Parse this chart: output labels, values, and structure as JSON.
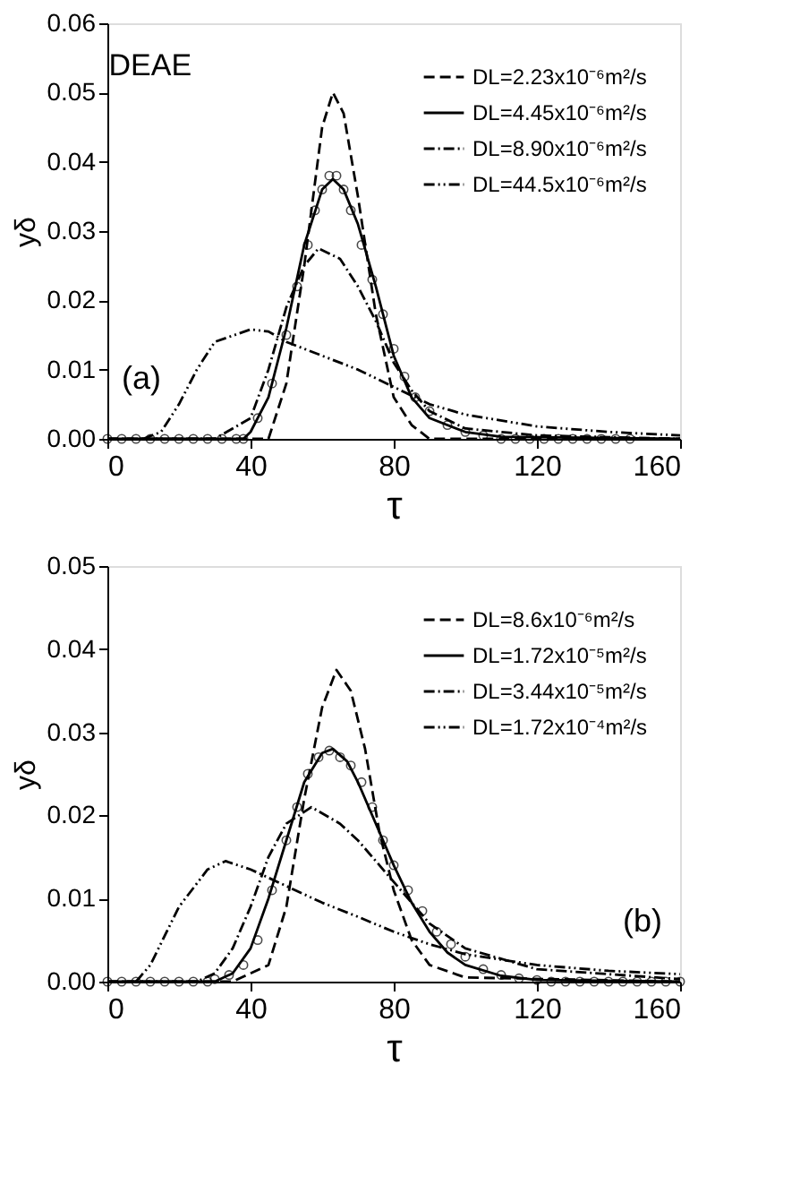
{
  "chart_data": [
    {
      "type": "line",
      "title": "DEAE",
      "xlabel": "τ",
      "ylabel": "yδ",
      "xlim": [
        0,
        160
      ],
      "xticks": [
        0,
        40,
        80,
        120,
        160
      ],
      "ylim": [
        0,
        0.06
      ],
      "yticks": [
        {
          "value": 0,
          "label": "0.00"
        },
        {
          "value": 0.01,
          "label": "0.01"
        },
        {
          "value": 0.02,
          "label": "0.02"
        },
        {
          "value": 0.03,
          "label": "0.03"
        },
        {
          "value": 0.04,
          "label": "0.04"
        },
        {
          "value": 0.05,
          "label": "0.05"
        },
        {
          "value": 0.06,
          "label": "0.06"
        }
      ],
      "grid": false,
      "legend": "top right",
      "annotations": [
        "(a)"
      ],
      "series": [
        {
          "name": "DL=2.23x10⁻⁶m²/s",
          "color": "#000000",
          "line_style": "dashed",
          "x": [
            0,
            45,
            50,
            55,
            60,
            63,
            66,
            70,
            75,
            80,
            85,
            90,
            160
          ],
          "values": [
            0,
            0,
            0.008,
            0.025,
            0.045,
            0.05,
            0.047,
            0.035,
            0.018,
            0.006,
            0.002,
            0,
            0
          ]
        },
        {
          "name": "DL=4.45x10⁻⁶m²/s",
          "color": "#000000",
          "line_style": "solid",
          "x": [
            0,
            38,
            40,
            45,
            50,
            55,
            60,
            63,
            66,
            70,
            75,
            80,
            85,
            90,
            100,
            110,
            160
          ],
          "values": [
            0,
            0,
            0.001,
            0.006,
            0.016,
            0.028,
            0.036,
            0.0375,
            0.036,
            0.031,
            0.022,
            0.012,
            0.006,
            0.003,
            0.001,
            0.0003,
            0
          ]
        },
        {
          "name": "DL=8.90x10⁻⁶m²/s",
          "color": "#000000",
          "line_style": "dashdot",
          "x": [
            0,
            30,
            40,
            45,
            50,
            55,
            59,
            65,
            70,
            75,
            80,
            85,
            90,
            100,
            120,
            160
          ],
          "values": [
            0,
            0,
            0.003,
            0.01,
            0.019,
            0.025,
            0.0275,
            0.026,
            0.022,
            0.017,
            0.011,
            0.007,
            0.004,
            0.0015,
            0.0005,
            0
          ]
        },
        {
          "name": "DL=44.5x10⁻⁶m²/s",
          "color": "#000000",
          "line_style": "dashdotdot",
          "x": [
            10,
            15,
            20,
            25,
            30,
            40,
            45,
            50,
            60,
            70,
            80,
            90,
            100,
            120,
            140,
            160
          ],
          "values": [
            0,
            0.001,
            0.005,
            0.01,
            0.014,
            0.0158,
            0.0155,
            0.014,
            0.012,
            0.01,
            0.0075,
            0.005,
            0.0035,
            0.0018,
            0.001,
            0.0005
          ]
        },
        {
          "type": "scatter",
          "marker": "circle",
          "color": "#000000",
          "x": [
            0,
            4,
            8,
            12,
            16,
            20,
            24,
            28,
            32,
            36,
            38,
            42,
            46,
            50,
            53,
            56,
            58,
            60,
            62,
            64,
            66,
            68,
            71,
            74,
            77,
            80,
            83,
            86,
            90,
            95,
            100,
            105,
            110,
            114,
            118,
            122,
            126,
            130,
            134,
            138,
            142,
            146
          ],
          "values": [
            0,
            0,
            0,
            0,
            0,
            0,
            0,
            0,
            0,
            0,
            0,
            0.003,
            0.008,
            0.015,
            0.022,
            0.028,
            0.033,
            0.036,
            0.038,
            0.038,
            0.036,
            0.033,
            0.028,
            0.023,
            0.018,
            0.013,
            0.009,
            0.006,
            0.004,
            0.002,
            0.001,
            0.0005,
            0,
            0,
            0,
            0,
            0,
            0,
            0,
            0,
            0,
            0
          ]
        }
      ]
    },
    {
      "type": "line",
      "xlabel": "τ",
      "ylabel": "yδ",
      "xlim": [
        0,
        160
      ],
      "xticks": [
        0,
        40,
        80,
        120,
        160
      ],
      "ylim": [
        0,
        0.05
      ],
      "yticks": [
        {
          "value": 0,
          "label": "0.00"
        },
        {
          "value": 0.01,
          "label": "0.01"
        },
        {
          "value": 0.02,
          "label": "0.02"
        },
        {
          "value": 0.03,
          "label": "0.03"
        },
        {
          "value": 0.04,
          "label": "0.04"
        },
        {
          "value": 0.05,
          "label": "0.05"
        }
      ],
      "grid": false,
      "legend": "top right",
      "annotations": [
        "(b)"
      ],
      "series": [
        {
          "name": "DL=8.6x10⁻⁶m²/s",
          "color": "#000000",
          "line_style": "dashed",
          "x": [
            0,
            35,
            45,
            50,
            55,
            60,
            64,
            68,
            72,
            76,
            80,
            85,
            90,
            100,
            160
          ],
          "values": [
            0,
            0,
            0.002,
            0.009,
            0.022,
            0.033,
            0.0375,
            0.035,
            0.028,
            0.018,
            0.011,
            0.005,
            0.002,
            0.0005,
            0
          ]
        },
        {
          "name": "DL=1.72x10⁻⁵m²/s",
          "color": "#000000",
          "line_style": "solid",
          "x": [
            0,
            30,
            35,
            40,
            45,
            50,
            55,
            60,
            63,
            67,
            70,
            75,
            80,
            85,
            90,
            95,
            100,
            110,
            120,
            160
          ],
          "values": [
            0,
            0,
            0.001,
            0.004,
            0.01,
            0.017,
            0.024,
            0.0275,
            0.028,
            0.0265,
            0.024,
            0.019,
            0.014,
            0.0095,
            0.006,
            0.0035,
            0.002,
            0.0007,
            0.0002,
            0
          ]
        },
        {
          "name": "DL=3.44x10⁻⁵m²/s",
          "color": "#000000",
          "line_style": "dashdot",
          "x": [
            0,
            25,
            30,
            35,
            40,
            45,
            50,
            57,
            65,
            70,
            80,
            90,
            100,
            120,
            160
          ],
          "values": [
            0,
            0,
            0.001,
            0.004,
            0.009,
            0.015,
            0.019,
            0.021,
            0.019,
            0.017,
            0.012,
            0.007,
            0.004,
            0.0015,
            0.0003
          ]
        },
        {
          "name": "DL=1.72x10⁻⁴m²/s",
          "color": "#000000",
          "line_style": "dashdotdot",
          "x": [
            8,
            12,
            20,
            28,
            33,
            40,
            50,
            60,
            70,
            80,
            90,
            100,
            120,
            140,
            160
          ],
          "values": [
            0,
            0.002,
            0.009,
            0.0135,
            0.0145,
            0.0135,
            0.0115,
            0.0095,
            0.0078,
            0.006,
            0.0045,
            0.0033,
            0.002,
            0.0013,
            0.0009
          ]
        },
        {
          "type": "scatter",
          "marker": "circle",
          "color": "#000000",
          "x": [
            0,
            4,
            8,
            12,
            16,
            20,
            24,
            28,
            30,
            34,
            38,
            42,
            46,
            50,
            53,
            56,
            59,
            62,
            65,
            68,
            71,
            74,
            77,
            80,
            84,
            88,
            92,
            96,
            100,
            105,
            110,
            115,
            120,
            124,
            128,
            132,
            136,
            140,
            144,
            148,
            152,
            156,
            160
          ],
          "values": [
            0,
            0,
            0,
            0,
            0,
            0,
            0,
            0,
            0.0003,
            0.0008,
            0.002,
            0.005,
            0.011,
            0.017,
            0.021,
            0.025,
            0.027,
            0.0278,
            0.027,
            0.026,
            0.024,
            0.021,
            0.017,
            0.014,
            0.011,
            0.0085,
            0.006,
            0.0045,
            0.003,
            0.0015,
            0.0008,
            0.0004,
            0.0002,
            0,
            0,
            0,
            0,
            0,
            0,
            0,
            0,
            0,
            0
          ]
        }
      ]
    }
  ]
}
